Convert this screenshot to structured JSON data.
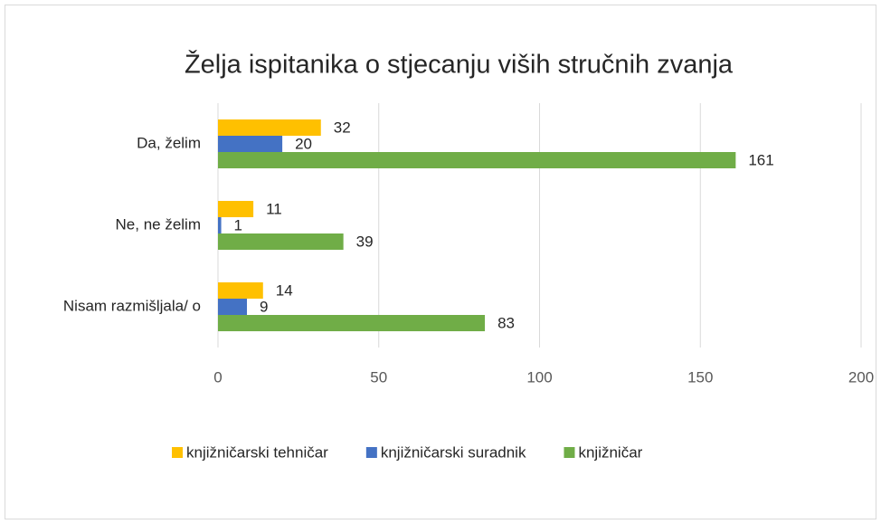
{
  "chart_data": {
    "type": "hbar",
    "title": "Želja ispitanika o stjecanju viših stručnih zvanja",
    "categories": [
      "Da, želim",
      "Ne, ne želim",
      "Nisam razmišljala/ o"
    ],
    "series": [
      {
        "name": "knjižničarski tehničar",
        "color": "#FFC000",
        "values": [
          32,
          11,
          14
        ]
      },
      {
        "name": "knjižničarski suradnik",
        "color": "#4472C4",
        "values": [
          20,
          1,
          9
        ]
      },
      {
        "name": "knjižničar",
        "color": "#70AD47",
        "values": [
          161,
          39,
          83
        ]
      }
    ],
    "xlim": [
      0,
      200
    ],
    "xticks": [
      0,
      50,
      100,
      150,
      200
    ],
    "grid": true,
    "legend": "bottom"
  }
}
